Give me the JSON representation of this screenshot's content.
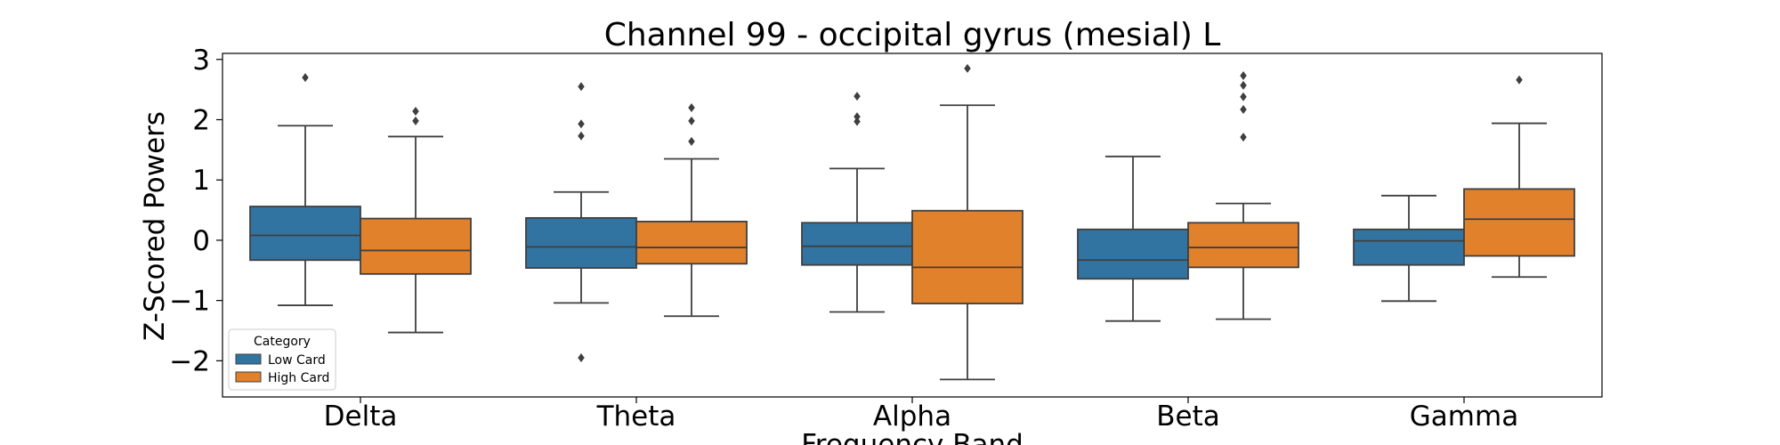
{
  "chart_data": {
    "type": "box",
    "title": "Channel 99 - occipital gyrus (mesial) L",
    "xlabel": "Frequency Band",
    "ylabel": "Z-Scored Powers",
    "ylim": [
      -2.6,
      3.1
    ],
    "yticks": [
      3,
      2,
      1,
      0,
      -1,
      -2
    ],
    "ytick_labels": [
      "3",
      "2",
      "1",
      "0",
      "−1",
      "−2"
    ],
    "categories": [
      "Delta",
      "Theta",
      "Alpha",
      "Beta",
      "Gamma"
    ],
    "legend": {
      "title": "Category",
      "position": "lower-left"
    },
    "series": [
      {
        "name": "Low Card",
        "color": "#3274a1",
        "boxes": [
          {
            "q1": -0.33,
            "median": 0.08,
            "q3": 0.56,
            "whisker_low": -1.08,
            "whisker_high": 1.9,
            "outliers": [
              2.7
            ]
          },
          {
            "q1": -0.46,
            "median": -0.11,
            "q3": 0.37,
            "whisker_low": -1.04,
            "whisker_high": 0.8,
            "outliers": [
              2.55,
              1.93,
              1.73,
              -1.95
            ]
          },
          {
            "q1": -0.41,
            "median": -0.1,
            "q3": 0.29,
            "whisker_low": -1.19,
            "whisker_high": 1.19,
            "outliers": [
              2.39,
              2.05,
              1.97
            ]
          },
          {
            "q1": -0.64,
            "median": -0.33,
            "q3": 0.18,
            "whisker_low": -1.34,
            "whisker_high": 1.39,
            "outliers": []
          },
          {
            "q1": -0.41,
            "median": -0.01,
            "q3": 0.18,
            "whisker_low": -1.01,
            "whisker_high": 0.74,
            "outliers": []
          }
        ]
      },
      {
        "name": "High Card",
        "color": "#e1812c",
        "boxes": [
          {
            "q1": -0.56,
            "median": -0.17,
            "q3": 0.36,
            "whisker_low": -1.53,
            "whisker_high": 1.72,
            "outliers": [
              2.14,
              1.98
            ]
          },
          {
            "q1": -0.39,
            "median": -0.12,
            "q3": 0.31,
            "whisker_low": -1.26,
            "whisker_high": 1.35,
            "outliers": [
              2.2,
              1.98,
              1.64
            ]
          },
          {
            "q1": -1.05,
            "median": -0.45,
            "q3": 0.49,
            "whisker_low": -2.31,
            "whisker_high": 2.24,
            "outliers": [
              2.85
            ]
          },
          {
            "q1": -0.45,
            "median": -0.12,
            "q3": 0.29,
            "whisker_low": -1.31,
            "whisker_high": 0.61,
            "outliers": [
              2.73,
              2.57,
              2.38,
              2.17,
              1.71
            ]
          },
          {
            "q1": -0.26,
            "median": 0.35,
            "q3": 0.85,
            "whisker_low": -0.61,
            "whisker_high": 1.94,
            "outliers": [
              2.66
            ]
          }
        ]
      }
    ],
    "grid": false
  }
}
